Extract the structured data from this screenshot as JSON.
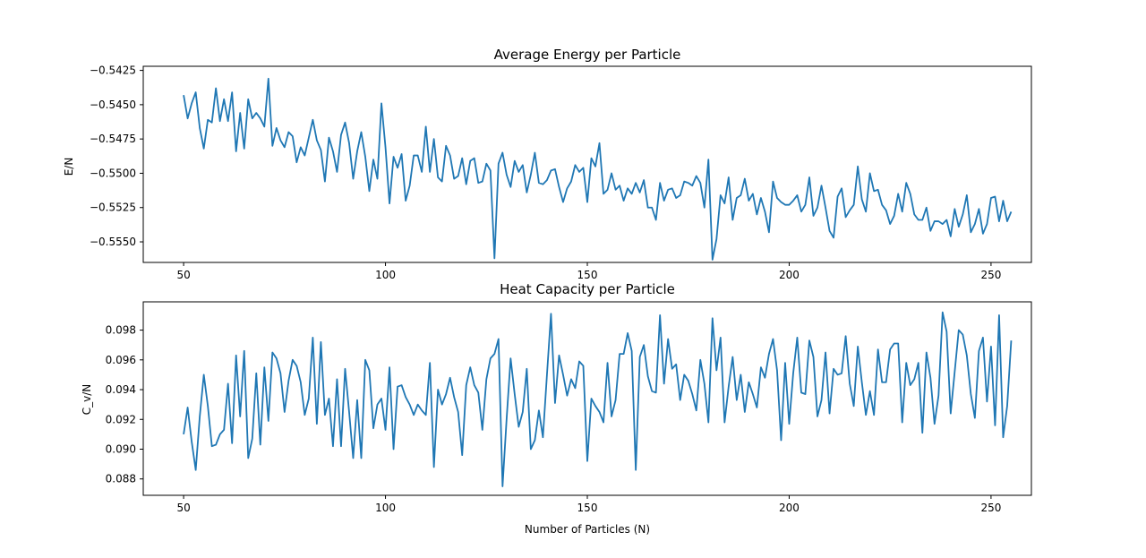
{
  "xlabel_shared": "Number of Particles (N)",
  "chart_data": [
    {
      "type": "line",
      "title": "Average Energy per Particle",
      "xlabel": "",
      "ylabel": "E/N",
      "xlim": [
        40,
        260
      ],
      "ylim": [
        -0.5565,
        -0.5422
      ],
      "xticks": [
        50,
        100,
        150,
        200,
        250
      ],
      "xtick_labels": [
        "50",
        "100",
        "150",
        "200",
        "250"
      ],
      "yticks": [
        -0.5425,
        -0.545,
        -0.5475,
        -0.55,
        -0.5525,
        -0.555
      ],
      "ytick_labels": [
        "−0.5425",
        "−0.5450",
        "−0.5475",
        "−0.5500",
        "−0.5525",
        "−0.5550"
      ],
      "grid": false,
      "color": "#1f77b4",
      "x_start": 50,
      "x_step": 1,
      "values": [
        -0.5443,
        -0.546,
        -0.5449,
        -0.5441,
        -0.5467,
        -0.5482,
        -0.5461,
        -0.5463,
        -0.5438,
        -0.5462,
        -0.5446,
        -0.5462,
        -0.5441,
        -0.5484,
        -0.5456,
        -0.5482,
        -0.5446,
        -0.546,
        -0.5456,
        -0.546,
        -0.5466,
        -0.5431,
        -0.548,
        -0.5467,
        -0.5476,
        -0.5481,
        -0.547,
        -0.5473,
        -0.5492,
        -0.5481,
        -0.5487,
        -0.5474,
        -0.5461,
        -0.5476,
        -0.5483,
        -0.5506,
        -0.5474,
        -0.5484,
        -0.5499,
        -0.5472,
        -0.5463,
        -0.5478,
        -0.5504,
        -0.5484,
        -0.547,
        -0.5488,
        -0.5513,
        -0.549,
        -0.5504,
        -0.5449,
        -0.5481,
        -0.5522,
        -0.5488,
        -0.5496,
        -0.5486,
        -0.552,
        -0.5509,
        -0.5487,
        -0.5487,
        -0.5499,
        -0.5466,
        -0.5499,
        -0.5475,
        -0.5503,
        -0.5506,
        -0.548,
        -0.5487,
        -0.5504,
        -0.5502,
        -0.5489,
        -0.5508,
        -0.5491,
        -0.5489,
        -0.5507,
        -0.5506,
        -0.5493,
        -0.5498,
        -0.5562,
        -0.5493,
        -0.5485,
        -0.5501,
        -0.551,
        -0.5491,
        -0.5499,
        -0.5494,
        -0.5514,
        -0.5501,
        -0.5485,
        -0.5507,
        -0.5508,
        -0.5505,
        -0.5498,
        -0.5497,
        -0.551,
        -0.5521,
        -0.5511,
        -0.5506,
        -0.5494,
        -0.5499,
        -0.5496,
        -0.5521,
        -0.5489,
        -0.5495,
        -0.5478,
        -0.5515,
        -0.5512,
        -0.55,
        -0.5512,
        -0.5509,
        -0.552,
        -0.5511,
        -0.5515,
        -0.5507,
        -0.5514,
        -0.5505,
        -0.5525,
        -0.5525,
        -0.5534,
        -0.5507,
        -0.552,
        -0.5512,
        -0.5511,
        -0.5518,
        -0.5516,
        -0.5506,
        -0.5507,
        -0.5509,
        -0.5502,
        -0.5507,
        -0.5525,
        -0.549,
        -0.5563,
        -0.5548,
        -0.5516,
        -0.5522,
        -0.5503,
        -0.5534,
        -0.5518,
        -0.5516,
        -0.5504,
        -0.552,
        -0.5515,
        -0.553,
        -0.5518,
        -0.5528,
        -0.5543,
        -0.5506,
        -0.5518,
        -0.5521,
        -0.5523,
        -0.5523,
        -0.552,
        -0.5516,
        -0.5528,
        -0.5523,
        -0.5503,
        -0.5531,
        -0.5525,
        -0.5509,
        -0.5525,
        -0.5542,
        -0.5547,
        -0.5517,
        -0.5511,
        -0.5532,
        -0.5527,
        -0.5523,
        -0.5495,
        -0.5519,
        -0.5528,
        -0.55,
        -0.5513,
        -0.5512,
        -0.5523,
        -0.5527,
        -0.5537,
        -0.5531,
        -0.5515,
        -0.5528,
        -0.5507,
        -0.5515,
        -0.553,
        -0.5534,
        -0.5534,
        -0.5525,
        -0.5542,
        -0.5535,
        -0.5535,
        -0.5537,
        -0.5534,
        -0.5546,
        -0.5526,
        -0.5539,
        -0.553,
        -0.5516,
        -0.5543,
        -0.5537,
        -0.5526,
        -0.5544,
        -0.5537,
        -0.5518,
        -0.5517,
        -0.5535,
        -0.552,
        -0.5535,
        -0.5528
      ]
    },
    {
      "type": "line",
      "title": "Heat Capacity per Particle",
      "xlabel": "Number of Particles (N)",
      "ylabel": "C_v/N",
      "xlim": [
        40,
        260
      ],
      "ylim": [
        0.0869,
        0.0999
      ],
      "xticks": [
        50,
        100,
        150,
        200,
        250
      ],
      "xtick_labels": [
        "50",
        "100",
        "150",
        "200",
        "250"
      ],
      "yticks": [
        0.088,
        0.09,
        0.092,
        0.094,
        0.096,
        0.098
      ],
      "ytick_labels": [
        "0.088",
        "0.090",
        "0.092",
        "0.094",
        "0.096",
        "0.098"
      ],
      "grid": false,
      "color": "#1f77b4",
      "x_start": 50,
      "x_step": 1,
      "values": [
        0.091,
        0.0928,
        0.0905,
        0.0886,
        0.0922,
        0.095,
        0.0929,
        0.0902,
        0.0903,
        0.091,
        0.0913,
        0.0944,
        0.0904,
        0.0963,
        0.0922,
        0.0966,
        0.0894,
        0.0907,
        0.0951,
        0.0903,
        0.0955,
        0.0919,
        0.0965,
        0.0961,
        0.0951,
        0.0925,
        0.0946,
        0.096,
        0.0956,
        0.0945,
        0.0923,
        0.0934,
        0.0975,
        0.0917,
        0.0972,
        0.0923,
        0.0934,
        0.0902,
        0.0947,
        0.0902,
        0.0954,
        0.0925,
        0.0894,
        0.0933,
        0.0894,
        0.096,
        0.0953,
        0.0914,
        0.093,
        0.0934,
        0.0913,
        0.0955,
        0.09,
        0.0942,
        0.0943,
        0.0935,
        0.093,
        0.0923,
        0.093,
        0.0926,
        0.0923,
        0.0958,
        0.0888,
        0.094,
        0.093,
        0.0937,
        0.0948,
        0.0935,
        0.0925,
        0.0896,
        0.0943,
        0.0955,
        0.0943,
        0.0938,
        0.0913,
        0.0947,
        0.0961,
        0.0964,
        0.0974,
        0.0875,
        0.092,
        0.0961,
        0.0937,
        0.0915,
        0.0925,
        0.0954,
        0.09,
        0.0906,
        0.0926,
        0.0908,
        0.095,
        0.0991,
        0.0931,
        0.0963,
        0.095,
        0.0936,
        0.0947,
        0.0941,
        0.0959,
        0.0956,
        0.0892,
        0.0934,
        0.0929,
        0.0925,
        0.0918,
        0.0958,
        0.0922,
        0.0933,
        0.0964,
        0.0964,
        0.0978,
        0.0966,
        0.0886,
        0.0962,
        0.097,
        0.0949,
        0.0939,
        0.0938,
        0.099,
        0.0944,
        0.0974,
        0.0954,
        0.0957,
        0.0933,
        0.095,
        0.0946,
        0.0937,
        0.0926,
        0.096,
        0.0944,
        0.0918,
        0.0988,
        0.0953,
        0.0975,
        0.0918,
        0.0942,
        0.0962,
        0.0933,
        0.095,
        0.0925,
        0.0945,
        0.0937,
        0.0928,
        0.0955,
        0.0948,
        0.0964,
        0.0974,
        0.0953,
        0.0906,
        0.0958,
        0.0917,
        0.0951,
        0.0975,
        0.0938,
        0.0937,
        0.0973,
        0.0962,
        0.0922,
        0.0933,
        0.0965,
        0.0924,
        0.0954,
        0.095,
        0.0951,
        0.0976,
        0.0944,
        0.0929,
        0.0969,
        0.0945,
        0.0923,
        0.0939,
        0.0923,
        0.0967,
        0.0945,
        0.0945,
        0.0967,
        0.0971,
        0.0971,
        0.0918,
        0.0958,
        0.0943,
        0.0947,
        0.0958,
        0.0911,
        0.0965,
        0.0948,
        0.0917,
        0.0936,
        0.0992,
        0.0979,
        0.0924,
        0.0952,
        0.098,
        0.0977,
        0.0963,
        0.0937,
        0.0921,
        0.0966,
        0.0975,
        0.0932,
        0.0969,
        0.0916,
        0.099,
        0.0908,
        0.0929,
        0.0973
      ]
    }
  ]
}
